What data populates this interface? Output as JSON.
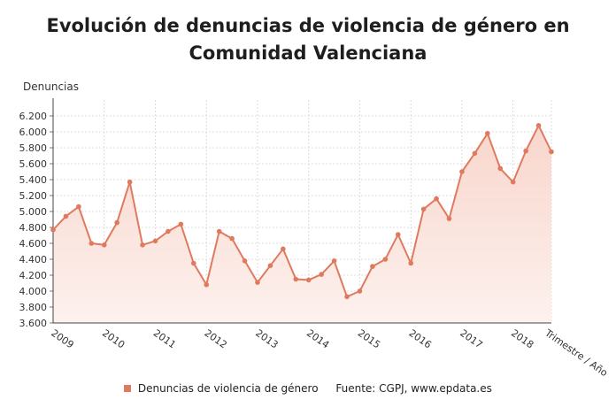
{
  "chart_data": {
    "type": "area",
    "title_lines": [
      "Evolución de denuncias de violencia de género en",
      "Comunidad Valenciana"
    ],
    "ylabel": "Denuncias",
    "xlabel": "Trimestre / Año",
    "ylim": [
      3600,
      6400
    ],
    "yticks": [
      3600,
      3800,
      4000,
      4200,
      4400,
      4600,
      4800,
      5000,
      5200,
      5400,
      5600,
      5800,
      6000,
      6200
    ],
    "ytick_labels": [
      "3.600",
      "3.800",
      "4.000",
      "4.200",
      "4.400",
      "4.600",
      "4.800",
      "5.000",
      "5.200",
      "5.400",
      "5.600",
      "5.800",
      "6.000",
      "6.200"
    ],
    "year_labels": [
      "2009",
      "2010",
      "2011",
      "2012",
      "2013",
      "2014",
      "2015",
      "2016",
      "2017",
      "2018"
    ],
    "series": [
      {
        "name": "Denuncias de violencia de género",
        "values": [
          4770,
          4940,
          5060,
          4600,
          4580,
          4860,
          5370,
          4580,
          4630,
          4750,
          4840,
          4350,
          4080,
          4750,
          4660,
          4380,
          4110,
          4320,
          4530,
          4150,
          4140,
          4210,
          4380,
          3930,
          4000,
          4310,
          4400,
          4710,
          4350,
          5030,
          5160,
          4910,
          5500,
          5730,
          5980,
          5540,
          5370,
          5760,
          6080,
          5750
        ]
      }
    ],
    "legend_position": "bottom",
    "source": "Fuente: CGPJ, www.epdata.es",
    "colors": {
      "line": "#e07a5f",
      "fill_top": "#f8d6cc",
      "fill_bottom": "#fdf1ee",
      "grid": "#d4d4d4"
    }
  }
}
